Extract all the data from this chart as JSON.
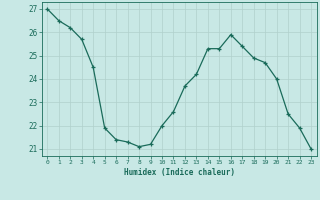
{
  "x": [
    0,
    1,
    2,
    3,
    4,
    5,
    6,
    7,
    8,
    9,
    10,
    11,
    12,
    13,
    14,
    15,
    16,
    17,
    18,
    19,
    20,
    21,
    22,
    23
  ],
  "y": [
    27.0,
    26.5,
    26.2,
    25.7,
    24.5,
    21.9,
    21.4,
    21.3,
    21.1,
    21.2,
    22.0,
    22.6,
    23.7,
    24.2,
    25.3,
    25.3,
    25.9,
    25.4,
    24.9,
    24.7,
    24.0,
    22.5,
    21.9,
    21.0
  ],
  "xlabel": "Humidex (Indice chaleur)",
  "xlim": [
    -0.5,
    23.5
  ],
  "ylim": [
    20.7,
    27.3
  ],
  "yticks": [
    21,
    22,
    23,
    24,
    25,
    26,
    27
  ],
  "xticks": [
    0,
    1,
    2,
    3,
    4,
    5,
    6,
    7,
    8,
    9,
    10,
    11,
    12,
    13,
    14,
    15,
    16,
    17,
    18,
    19,
    20,
    21,
    22,
    23
  ],
  "line_color": "#1a6b5a",
  "marker": "+",
  "bg_color": "#c8e8e5",
  "grid_color": "#b0d0cc",
  "axis_color": "#1a6b5a",
  "tick_color": "#1a6b5a",
  "label_color": "#1a6b5a"
}
